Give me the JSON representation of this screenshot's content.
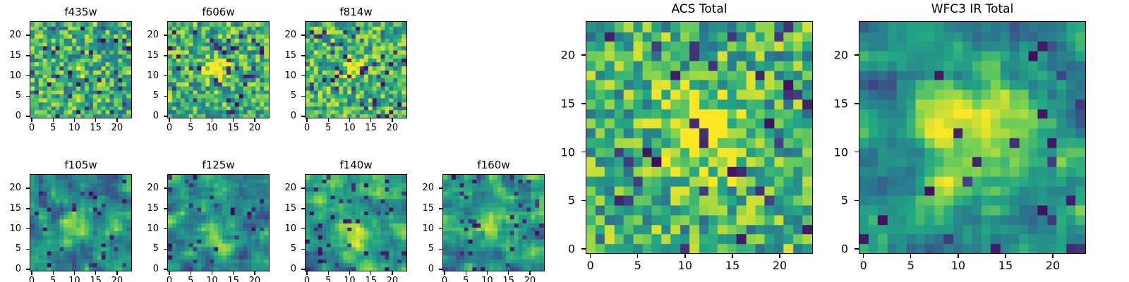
{
  "figure": {
    "background": "#ffffff",
    "description": "Grid of astronomical cutout heatmaps in HST filter bands with two combined total images"
  },
  "chart_data": {
    "type": "heatmap",
    "colormap": "viridis",
    "grid_size": 24,
    "x_range": [
      -0.5,
      23.5
    ],
    "y_range": [
      -0.5,
      23.5
    ],
    "xticks": [
      0,
      5,
      10,
      15,
      20
    ],
    "yticks": [
      0,
      5,
      10,
      15,
      20
    ],
    "legend": "none",
    "grid_lines": false,
    "panels": [
      {
        "title": "f435w",
        "seed": 11,
        "smooth": 0,
        "blob": {
          "x": 11,
          "y": 11,
          "sigma": 1.3,
          "amp": 0.18
        },
        "dark_fraction": 0.07
      },
      {
        "title": "f606w",
        "seed": 22,
        "smooth": 0,
        "blob": {
          "x": 11,
          "y": 12,
          "sigma": 1.7,
          "amp": 0.6
        },
        "dark_fraction": 0.06
      },
      {
        "title": "f814w",
        "seed": 33,
        "smooth": 0,
        "blob": {
          "x": 11,
          "y": 12,
          "sigma": 1.5,
          "amp": 0.5
        },
        "dark_fraction": 0.06
      },
      {
        "title": "f105w",
        "seed": 44,
        "smooth": 1,
        "blob": {
          "x": 11,
          "y": 10,
          "sigma": 2.5,
          "amp": 0.35
        },
        "dark_fraction": 0.05
      },
      {
        "title": "f125w",
        "seed": 55,
        "smooth": 1,
        "blob": {
          "x": 11,
          "y": 8,
          "sigma": 2.5,
          "amp": 0.3
        },
        "dark_fraction": 0.05
      },
      {
        "title": "f140w",
        "seed": 66,
        "smooth": 1,
        "blob": {
          "x": 11,
          "y": 9,
          "sigma": 2.8,
          "amp": 0.35
        },
        "dark_fraction": 0.05
      },
      {
        "title": "f160w",
        "seed": 77,
        "smooth": 1,
        "blob": {
          "x": 11,
          "y": 11,
          "sigma": 2.5,
          "amp": 0.3
        },
        "dark_fraction": 0.05
      },
      {
        "title": "ACS Total",
        "seed": 88,
        "smooth": 0,
        "blob": {
          "x": 12,
          "y": 12,
          "sigma": 3.0,
          "amp": 0.4
        },
        "dark_fraction": 0.05
      },
      {
        "title": "WFC3 IR Total",
        "seed": 99,
        "smooth": 1,
        "blob": {
          "x": 12,
          "y": 12,
          "sigma": 4.0,
          "amp": 0.5
        },
        "dark_fraction": 0.04
      }
    ]
  }
}
